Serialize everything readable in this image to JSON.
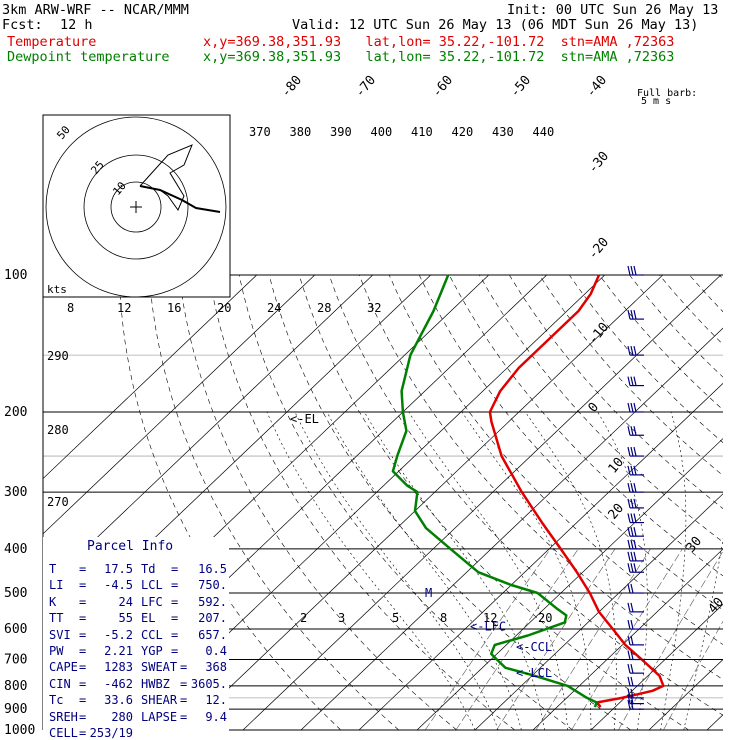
{
  "header": {
    "model": "3km ARW-WRF -- NCAR/MMM",
    "init": "Init: 00 UTC Sun 26 May 13",
    "fcst_label": "Fcst:",
    "fcst_value": "12 h",
    "valid": "Valid: 12 UTC Sun 26 May 13 (06 MDT Sun 26 May 13)",
    "temp_label": "Temperature",
    "temp_info": "x,y=369.38,351.93   lat,lon= 35.22,-101.72  stn=AMA ,72363",
    "dew_label": "Dewpoint temperature",
    "dew_info": "x,y=369.38,351.93   lat,lon= 35.22,-101.72  stn=AMA ,72363"
  },
  "barb_key": {
    "title": "Full barb:",
    "value": "5 m s"
  },
  "colors": {
    "temperature": "#e00000",
    "dewpoint": "#008000",
    "annotation": "#000080",
    "wind": "#000080"
  },
  "chart_data": {
    "type": "line",
    "plot_kind": "skew-T log-p sounding",
    "y_axis": {
      "label": "pressure (hPa)",
      "log_scale": true,
      "ylim": [
        1000,
        100
      ],
      "ticks": [
        1000,
        900,
        800,
        700,
        600,
        500,
        400,
        300,
        200,
        100
      ]
    },
    "isotherm_labels": [
      "-80",
      "-70",
      "-60",
      "-50",
      "-40",
      "-30",
      "-20",
      "-10",
      "0",
      "10",
      "20",
      "30",
      "40"
    ],
    "theta_labels": [
      "370",
      "380",
      "390",
      "400",
      "410",
      "420",
      "430",
      "440"
    ],
    "theta_low_labels": [
      "290",
      "280",
      "270"
    ],
    "mixing_ratio_labels_upper": [
      "8",
      "12",
      "16",
      "20",
      "24",
      "28",
      "32"
    ],
    "mixing_ratio_labels_lower": [
      "2",
      "3",
      "5",
      "8",
      "12",
      "20"
    ],
    "series": [
      {
        "name": "Temperature",
        "color": "#e00000",
        "points": [
          [
            890,
            17.5
          ],
          [
            870,
            16
          ],
          [
            850,
            19.5
          ],
          [
            820,
            23.5
          ],
          [
            800,
            24.5
          ],
          [
            760,
            22
          ],
          [
            700,
            16
          ],
          [
            650,
            10.5
          ],
          [
            600,
            5.5
          ],
          [
            550,
            0
          ],
          [
            500,
            -5
          ],
          [
            450,
            -11
          ],
          [
            400,
            -18
          ],
          [
            350,
            -26
          ],
          [
            300,
            -35
          ],
          [
            250,
            -45
          ],
          [
            210,
            -53
          ],
          [
            200,
            -55
          ],
          [
            180,
            -57
          ],
          [
            160,
            -58
          ],
          [
            140,
            -58
          ],
          [
            120,
            -58
          ],
          [
            110,
            -59
          ],
          [
            100,
            -61
          ]
        ]
      },
      {
        "name": "Dewpoint temperature",
        "color": "#008000",
        "points": [
          [
            890,
            16.5
          ],
          [
            870,
            16
          ],
          [
            850,
            13.5
          ],
          [
            800,
            8
          ],
          [
            760,
            0.5
          ],
          [
            730,
            -6
          ],
          [
            700,
            -9
          ],
          [
            680,
            -11
          ],
          [
            650,
            -12
          ],
          [
            620,
            -8
          ],
          [
            580,
            -4
          ],
          [
            560,
            -5
          ],
          [
            540,
            -8
          ],
          [
            500,
            -14
          ],
          [
            480,
            -20
          ],
          [
            450,
            -28
          ],
          [
            400,
            -37
          ],
          [
            360,
            -45
          ],
          [
            330,
            -50
          ],
          [
            300,
            -53
          ],
          [
            290,
            -56
          ],
          [
            270,
            -61
          ],
          [
            250,
            -63
          ],
          [
            220,
            -66
          ],
          [
            200,
            -70
          ],
          [
            180,
            -74
          ],
          [
            150,
            -79
          ],
          [
            120,
            -83
          ],
          [
            100,
            -87
          ]
        ]
      }
    ],
    "level_markers": [
      {
        "label": "<-LFC",
        "pressure": 592
      },
      {
        "label": "<-CCL",
        "pressure": 657
      },
      {
        "label": "<-LCL",
        "pressure": 750
      },
      {
        "label": "<-EL",
        "pressure": 207
      },
      {
        "label": "M",
        "pressure": 500
      }
    ],
    "hodograph": {
      "ring_labels": [
        "50",
        "25",
        "10"
      ],
      "speed_unit": "kts"
    },
    "wind_barbs": {
      "units": "m s",
      "levels": [
        100,
        125,
        150,
        175,
        200,
        225,
        250,
        275,
        300,
        325,
        350,
        375,
        400,
        425,
        450,
        500,
        550,
        600,
        650,
        700,
        750,
        800,
        850,
        875,
        900
      ]
    }
  },
  "parcel_info": {
    "title": "Parcel Info",
    "rows": [
      {
        "k1": "T",
        "v1": "17.5",
        "k2": "Td",
        "v2": "16.5"
      },
      {
        "k1": "LI",
        "v1": "-4.5",
        "k2": "LCL",
        "v2": "750."
      },
      {
        "k1": "K",
        "v1": "24",
        "k2": "LFC",
        "v2": "592."
      },
      {
        "k1": "TT",
        "v1": "55",
        "k2": "EL",
        "v2": "207."
      },
      {
        "k1": "SVI",
        "v1": "-5.2",
        "k2": "CCL",
        "v2": "657."
      },
      {
        "k1": "PW",
        "v1": "2.21",
        "k2": "YGP",
        "v2": "0.4"
      },
      {
        "k1": "CAPE",
        "v1": "1283",
        "k2": "SWEAT",
        "v2": "368"
      },
      {
        "k1": "CIN",
        "v1": "-462",
        "k2": "HWBZ",
        "v2": "3605."
      },
      {
        "k1": "Tc",
        "v1": "33.6",
        "k2": "SHEAR",
        "v2": "12."
      },
      {
        "k1": "SREH",
        "v1": "280",
        "k2": "LAPSE",
        "v2": "9.4"
      },
      {
        "k1": "CELL",
        "v1": "253/19",
        "k2": "",
        "v2": ""
      }
    ]
  }
}
